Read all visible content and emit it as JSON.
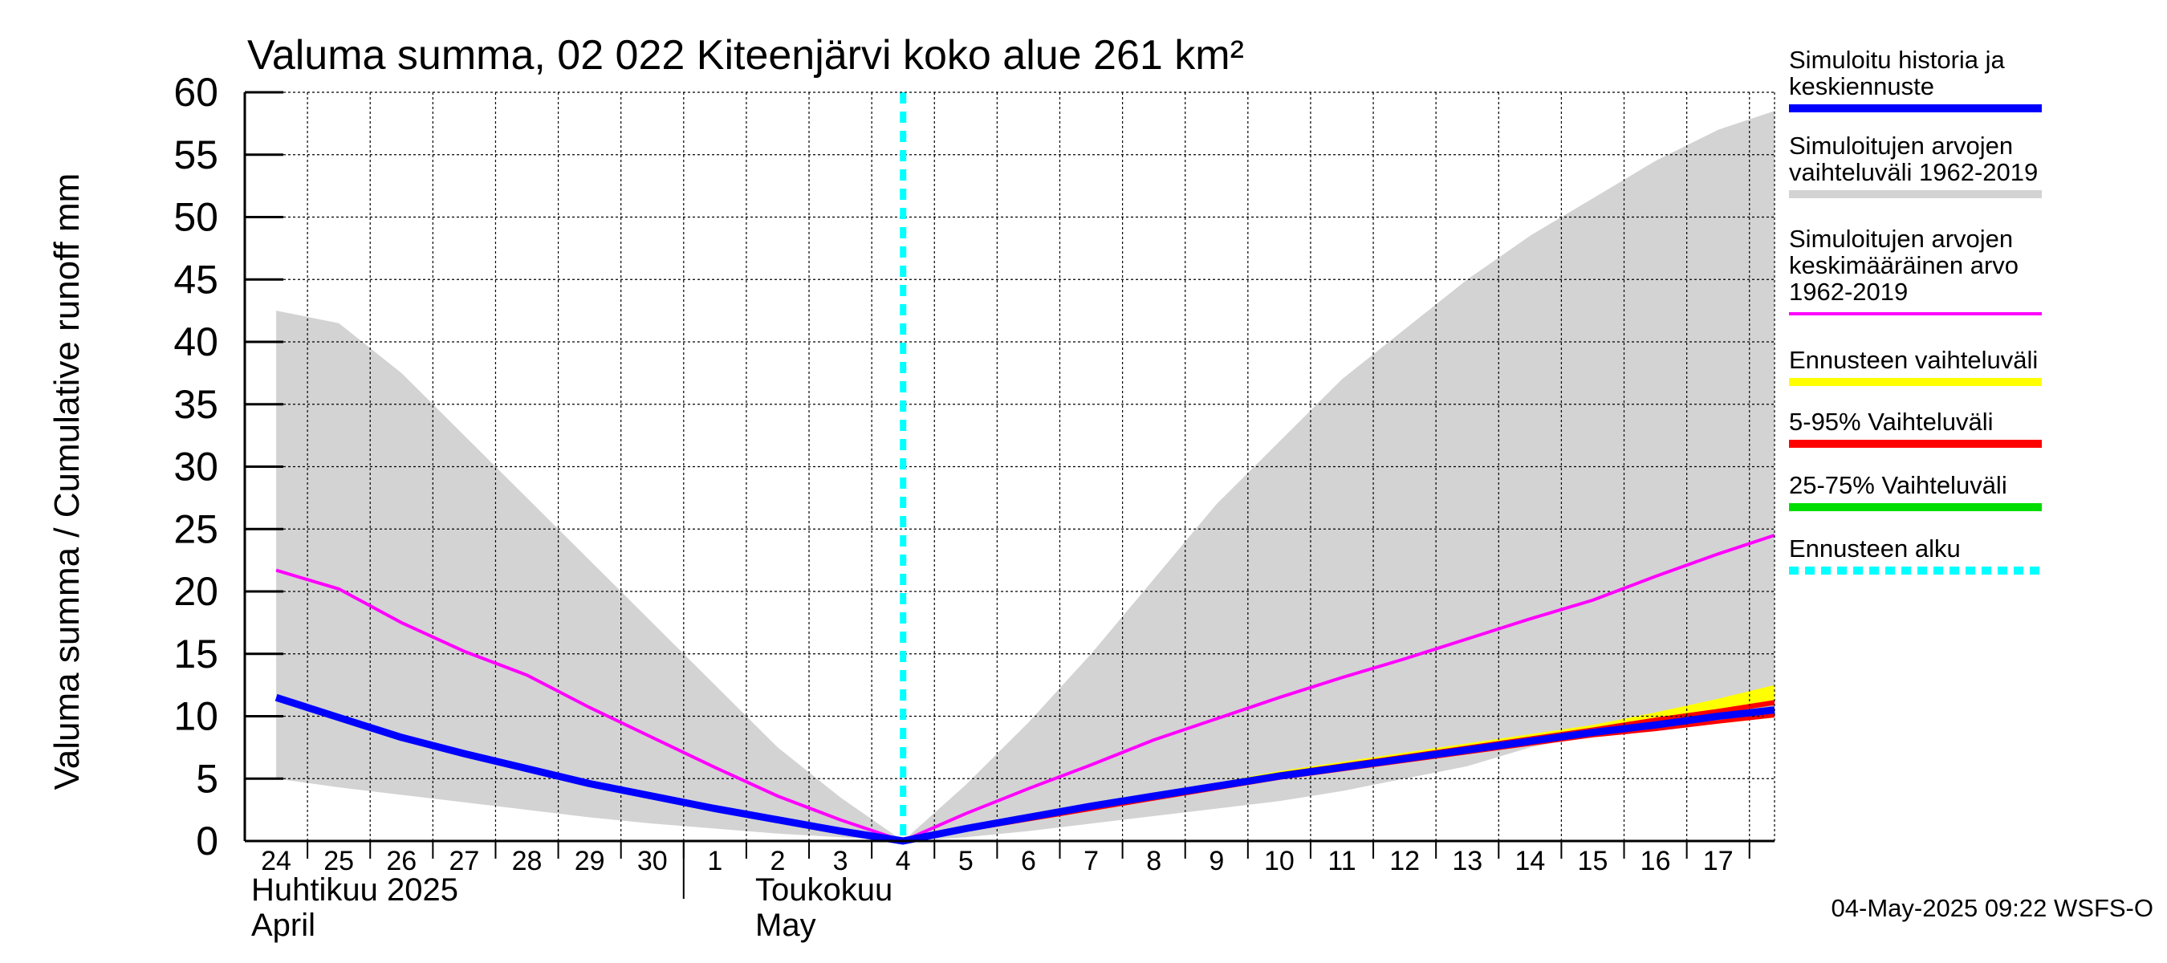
{
  "chart_data": {
    "type": "area",
    "title": "Valuma summa, 02 022 Kiteenjärvi koko alue 261 km²",
    "ylabel": "Valuma summa / Cumulative runoff    mm",
    "ylim": [
      0,
      60
    ],
    "yticks": [
      0,
      5,
      10,
      15,
      20,
      25,
      30,
      35,
      40,
      45,
      50,
      55,
      60
    ],
    "x_days": [
      "24",
      "25",
      "26",
      "27",
      "28",
      "29",
      "30",
      "1",
      "2",
      "3",
      "4",
      "5",
      "6",
      "7",
      "8",
      "9",
      "10",
      "11",
      "12",
      "13",
      "14",
      "15",
      "16",
      "17"
    ],
    "month_labels": [
      {
        "line1": "Huhtikuu  2025",
        "line2": "April"
      },
      {
        "line1": "Toukokuu",
        "line2": "May"
      }
    ],
    "forecast_start": "2025-05-04",
    "grid": true,
    "legend_position": "right",
    "footer": "04-May-2025 09:22 WSFS-O",
    "colors": {
      "historical_range": "#d3d3d3",
      "simulated": "#0000ff",
      "mean": "#ff00ff",
      "forecast_range": "#ffff00",
      "p5_95": "#ff0000",
      "p25_75": "#00dd00",
      "forecast_start": "#00ffff"
    },
    "legend": [
      {
        "lines": [
          "Simuloitu historia ja",
          "keskiennuste"
        ],
        "color": "#0000ff",
        "style": "solid"
      },
      {
        "lines": [
          "Simuloitujen arvojen",
          "vaihteluväli 1962-2019"
        ],
        "color": "#d3d3d3",
        "style": "solid"
      },
      {
        "lines": [
          "Simuloitujen arvojen",
          "keskimääräinen arvo",
          "   1962-2019"
        ],
        "color": "#ff00ff",
        "style": "thin"
      },
      {
        "lines": [
          "Ennusteen vaihteluväli"
        ],
        "color": "#ffff00",
        "style": "solid"
      },
      {
        "lines": [
          "5-95% Vaihteluväli"
        ],
        "color": "#ff0000",
        "style": "solid"
      },
      {
        "lines": [
          "25-75% Vaihteluväli"
        ],
        "color": "#00dd00",
        "style": "solid"
      },
      {
        "lines": [
          "Ennusteen alku"
        ],
        "color": "#00ffff",
        "style": "dashed"
      }
    ],
    "series": {
      "historical_range": {
        "x": [
          24,
          25,
          26,
          27,
          28,
          29,
          30,
          31,
          32,
          33,
          34.0,
          35,
          36,
          37,
          38,
          39,
          40,
          41,
          42,
          43,
          44,
          45,
          46,
          47,
          47.9
        ],
        "upper": [
          42.5,
          41.5,
          37.5,
          32.5,
          27.5,
          22.5,
          17.5,
          12.5,
          7.5,
          3.5,
          0,
          4.5,
          9.5,
          15,
          21,
          27,
          32,
          37,
          41,
          45,
          48.5,
          51.5,
          54.5,
          57,
          58.5
        ],
        "lower": [
          5,
          4.3,
          3.7,
          3.1,
          2.5,
          1.9,
          1.4,
          1.0,
          0.6,
          0.3,
          0,
          0.3,
          0.8,
          1.4,
          2.0,
          2.6,
          3.2,
          4.0,
          5.0,
          6.0,
          7.5,
          8.5,
          9.5,
          10.3,
          11.0
        ]
      },
      "mean": {
        "x": [
          24,
          25,
          26,
          27,
          28,
          29,
          30,
          31,
          32,
          33,
          34.0,
          35,
          36,
          37,
          38,
          39,
          40,
          41,
          42,
          43,
          44,
          45,
          46,
          47,
          47.9
        ],
        "values": [
          21.7,
          20.2,
          17.5,
          15.2,
          13.3,
          10.7,
          8.3,
          5.9,
          3.6,
          1.7,
          0,
          2.2,
          4.2,
          6.1,
          8.1,
          9.8,
          11.5,
          13.1,
          14.6,
          16.2,
          17.8,
          19.3,
          21.2,
          23.0,
          24.5
        ]
      },
      "simulated": {
        "x": [
          24,
          25,
          26,
          27,
          28,
          29,
          30,
          31,
          32,
          33,
          34.0,
          35,
          36,
          37,
          38,
          39,
          40,
          41,
          42,
          43,
          44,
          45,
          46,
          47,
          47.9
        ],
        "values": [
          11.5,
          9.9,
          8.3,
          7.0,
          5.8,
          4.6,
          3.6,
          2.6,
          1.7,
          0.8,
          0,
          1.0,
          1.9,
          2.8,
          3.6,
          4.4,
          5.2,
          5.9,
          6.6,
          7.3,
          8.0,
          8.7,
          9.3,
          10.0,
          10.5
        ]
      },
      "forecast_range": {
        "x": [
          34.0,
          40,
          45,
          46,
          47,
          47.9
        ],
        "upper": [
          0,
          5.6,
          9.3,
          10.3,
          11.4,
          12.5
        ],
        "lower": [
          0,
          5.0,
          8.4,
          8.9,
          9.4,
          9.9
        ]
      },
      "p5_95": {
        "x": [
          34.0,
          40,
          45,
          46,
          47,
          47.9
        ],
        "upper": [
          0,
          5.5,
          9.1,
          9.9,
          10.6,
          11.3
        ],
        "lower": [
          0,
          5.0,
          8.4,
          8.9,
          9.5,
          10.0
        ]
      },
      "p25_75": {
        "x": [
          34.0,
          40,
          45,
          46,
          47,
          47.9
        ],
        "upper": [
          0,
          5.3,
          8.8,
          9.5,
          10.2,
          10.9
        ],
        "lower": [
          0,
          5.1,
          8.5,
          9.1,
          9.7,
          10.3
        ]
      }
    }
  }
}
